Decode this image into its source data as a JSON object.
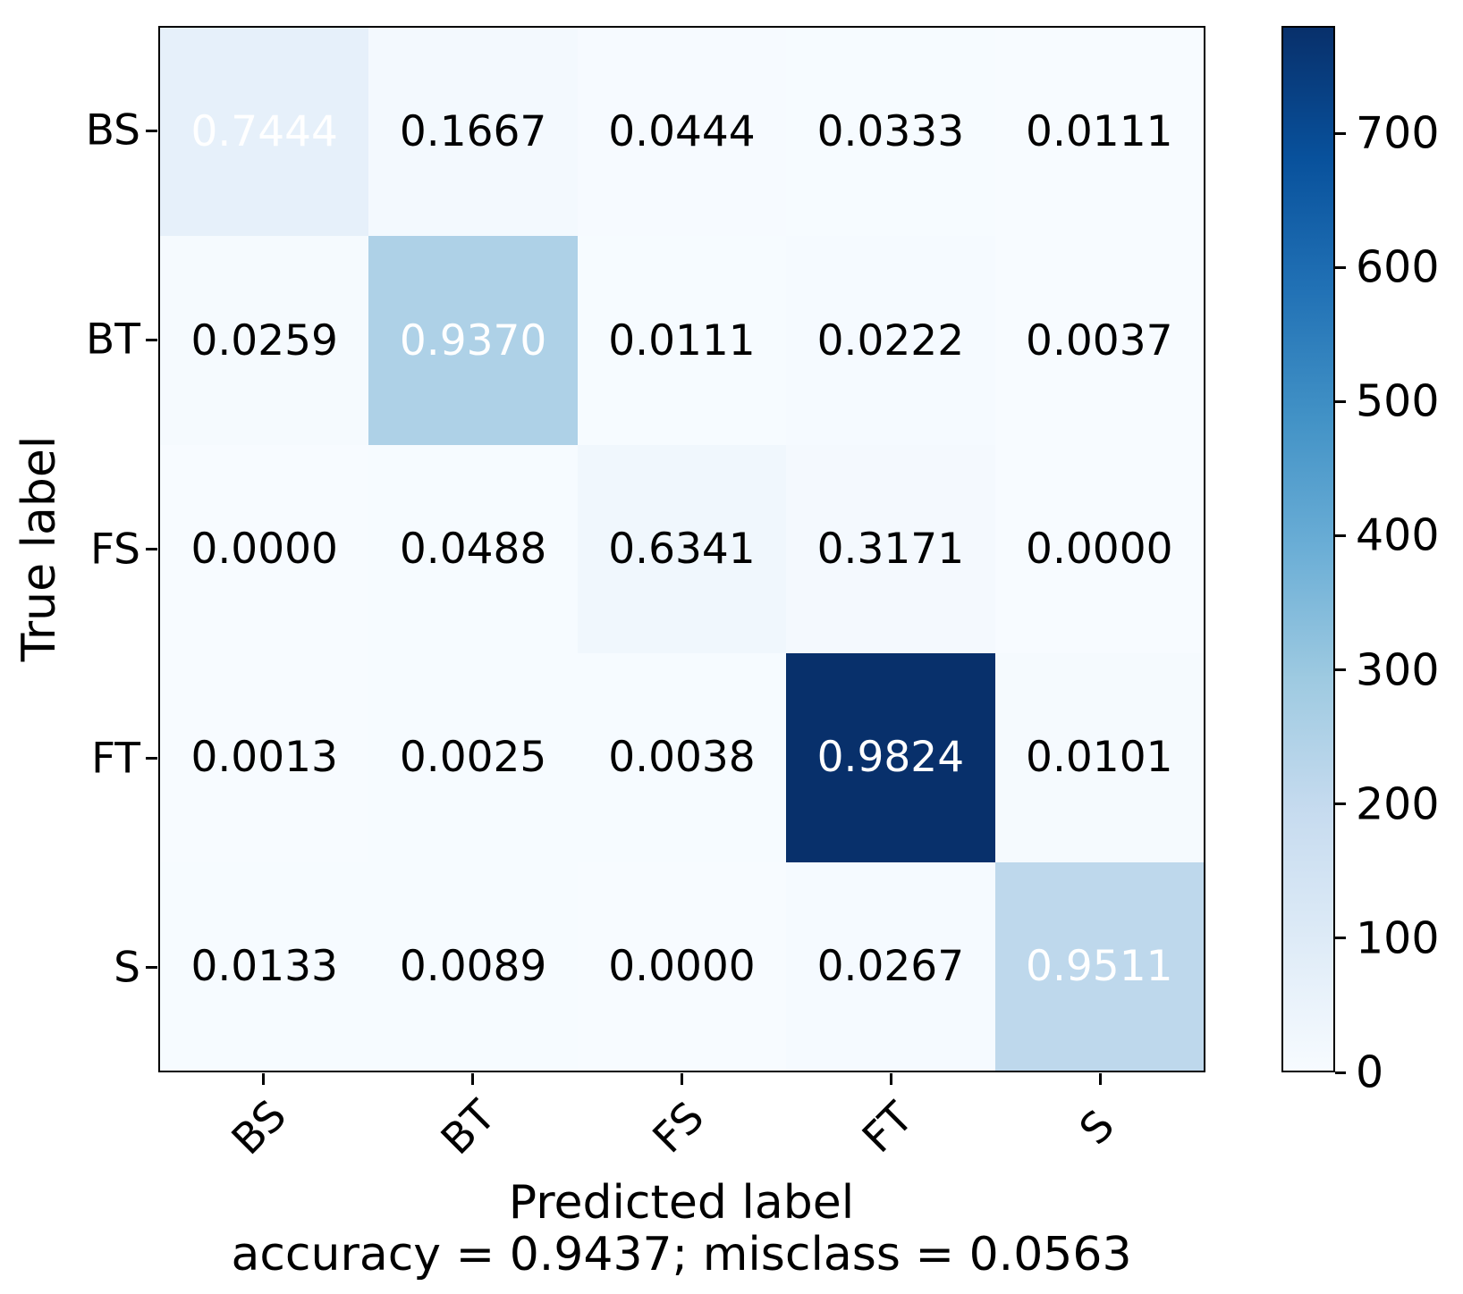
{
  "chart_data": {
    "type": "heatmap",
    "name": "confusion matrix",
    "xlabel": "Predicted label",
    "ylabel": "True label",
    "caption": "accuracy = 0.9437; misclass = 0.0563",
    "x_tick_labels": [
      "BS",
      "BT",
      "FS",
      "FT",
      "S"
    ],
    "y_tick_labels": [
      "BS",
      "BT",
      "FS",
      "FT",
      "S"
    ],
    "normalized_values": [
      [
        0.7444,
        0.1667,
        0.0444,
        0.0333,
        0.0111
      ],
      [
        0.0259,
        0.937,
        0.0111,
        0.0222,
        0.0037
      ],
      [
        0.0,
        0.0488,
        0.6341,
        0.3171,
        0.0
      ],
      [
        0.0013,
        0.0025,
        0.0038,
        0.9824,
        0.0101
      ],
      [
        0.0133,
        0.0089,
        0.0,
        0.0267,
        0.9511
      ]
    ],
    "counts_for_color": [
      [
        67,
        15,
        4,
        3,
        1
      ],
      [
        7,
        253,
        3,
        6,
        1
      ],
      [
        0,
        2,
        26,
        13,
        0
      ],
      [
        1,
        2,
        3,
        780,
        8
      ],
      [
        3,
        2,
        0,
        6,
        214
      ]
    ],
    "value_decimals": 4,
    "white_text_threshold": 0.7,
    "colormap": "Blues",
    "vmin": 0,
    "vmax": 780,
    "colorbar_ticks": [
      0,
      100,
      200,
      300,
      400,
      500,
      600,
      700
    ],
    "colorbar_position": "right",
    "grid": false,
    "colors": {
      "text": "#000000",
      "cell_text_light": "#ffffff",
      "axes_edge": "#000000",
      "background": "#ffffff",
      "colormap_stops": [
        [
          0.0,
          "#f7fbff"
        ],
        [
          0.125,
          "#deebf7"
        ],
        [
          0.25,
          "#c6dbef"
        ],
        [
          0.375,
          "#9ecae1"
        ],
        [
          0.5,
          "#6baed6"
        ],
        [
          0.625,
          "#4292c6"
        ],
        [
          0.75,
          "#2171b5"
        ],
        [
          0.875,
          "#08519c"
        ],
        [
          1.0,
          "#08306b"
        ]
      ]
    }
  }
}
